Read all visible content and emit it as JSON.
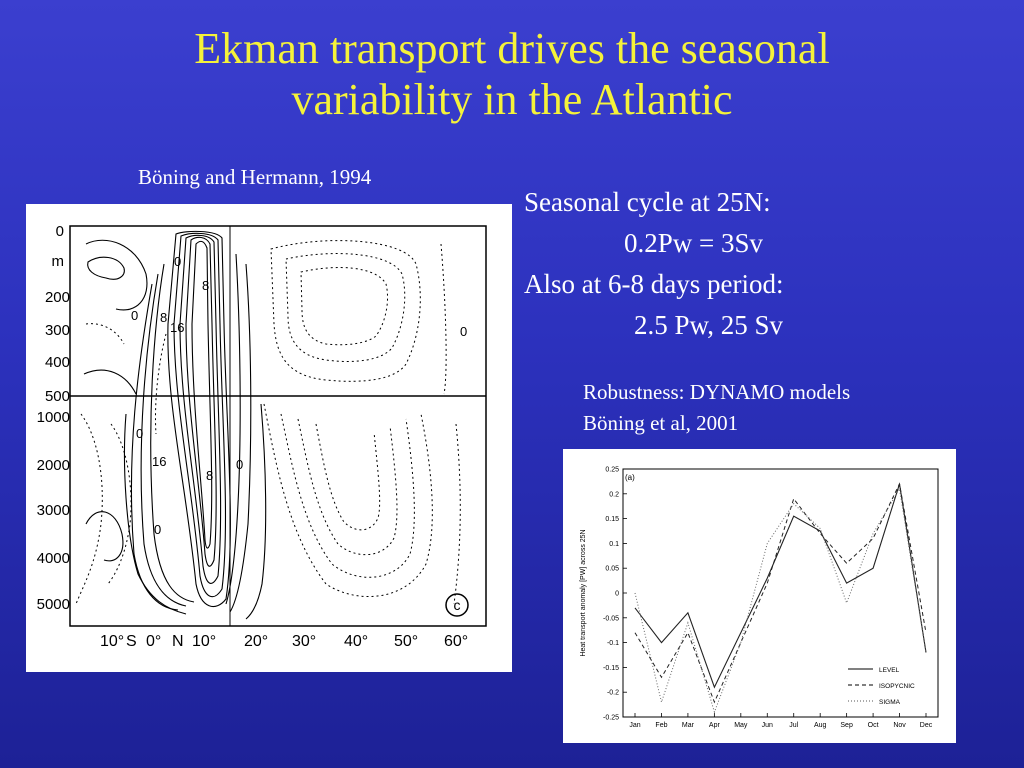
{
  "slide": {
    "title_line1": "Ekman transport drives the seasonal",
    "title_line2": "variability in the Atlantic",
    "citation_left": "Böning and Hermann, 1994",
    "seasonal_lines": [
      "Seasonal cycle at 25N:",
      "0.2Pw = 3Sv",
      "Also at 6-8 days period:",
      "2.5 Pw, 25 Sv"
    ],
    "robustness_line1": "Robustness: DYNAMO models",
    "robustness_line2": "Böning et al, 2001",
    "colors": {
      "background": "#2c31bd",
      "title": "#f5f23a",
      "body_text": "#ffffff"
    }
  },
  "contour_figure": {
    "depth_labels_top": [
      "0",
      "m",
      "200",
      "300",
      "400",
      "500"
    ],
    "depth_labels_bottom": [
      "1000",
      "2000",
      "3000",
      "4000",
      "5000"
    ],
    "lat_labels": [
      "10°",
      "S",
      "0°",
      "N",
      "10°",
      "20°",
      "30°",
      "40°",
      "50°",
      "60°"
    ],
    "contour_labels": [
      "0",
      "8",
      "16",
      "8",
      "0",
      "16",
      "8",
      "0",
      "0",
      "0",
      "0"
    ],
    "panel_label": "c"
  },
  "chart_data": {
    "type": "line",
    "title": "(a)",
    "xlabel": "",
    "ylabel": "Heat transport anomaly [PW] across 25N",
    "categories": [
      "Jan",
      "Feb",
      "Mar",
      "Apr",
      "May",
      "Jun",
      "Jul",
      "Aug",
      "Sep",
      "Oct",
      "Nov",
      "Dec"
    ],
    "ylim": [
      -0.25,
      0.25
    ],
    "yticks": [
      "0.25",
      "0.2",
      "0.15",
      "0.1",
      "0.05",
      "0",
      "-0.05",
      "-0.1",
      "-0.15",
      "-0.2",
      "-0.25"
    ],
    "legend_position": "bottom-right",
    "series": [
      {
        "name": "LEVEL",
        "style": "solid",
        "values": [
          -0.03,
          -0.1,
          -0.04,
          -0.19,
          -0.08,
          0.03,
          0.155,
          0.125,
          0.02,
          0.05,
          0.22,
          -0.12
        ]
      },
      {
        "name": "ISOPYCNIC",
        "style": "dashed",
        "values": [
          -0.08,
          -0.17,
          -0.08,
          -0.22,
          -0.1,
          0.02,
          0.19,
          0.12,
          0.06,
          0.11,
          0.22,
          -0.08
        ]
      },
      {
        "name": "SIGMA",
        "style": "dotted",
        "values": [
          0.0,
          -0.22,
          -0.06,
          -0.24,
          -0.1,
          0.1,
          0.18,
          0.13,
          -0.02,
          0.12,
          0.21,
          -0.12
        ]
      }
    ]
  }
}
